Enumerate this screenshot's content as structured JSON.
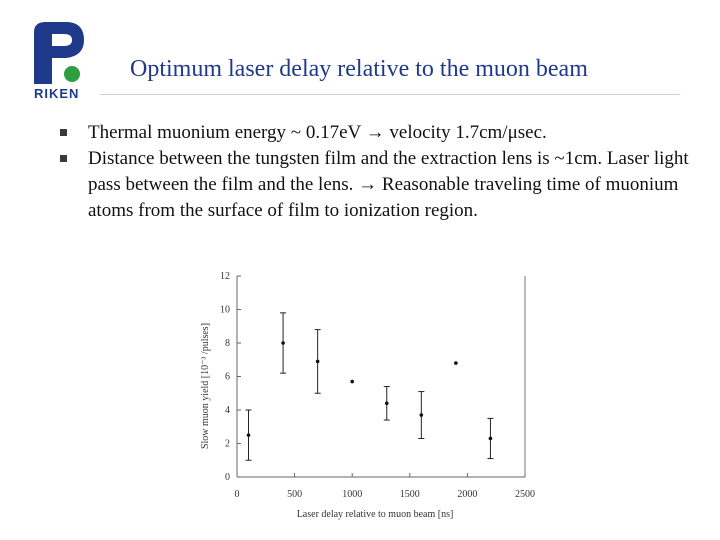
{
  "logo": {
    "text": "RIKEN",
    "color": "#1f3a8a",
    "accent": "#2e9e3e"
  },
  "slide": {
    "title": "Optimum laser delay relative to the muon beam",
    "bullets": [
      "Thermal muonium energy ~ 0.17eV → velocity 1.7cm/μsec.",
      "Distance between the tungsten film and the extraction lens is ~1cm. Laser light pass between the film and the lens. → Reasonable traveling time of muonium atoms from the surface of film to ionization region."
    ]
  },
  "chart_data": {
    "type": "scatter",
    "xlabel": "Laser delay relative to muon beam [ns]",
    "ylabel": "Slow muon yield [10⁻³ /pulses]",
    "xlim": [
      0,
      2500
    ],
    "ylim": [
      0,
      12
    ],
    "xticks": [
      0,
      500,
      1000,
      1500,
      2000,
      2500
    ],
    "yticks": [
      0,
      2,
      4,
      6,
      8,
      10,
      12
    ],
    "grid": false,
    "points": [
      {
        "x": 100,
        "y": 2.5,
        "err": 1.5
      },
      {
        "x": 400,
        "y": 8.0,
        "err": 1.8
      },
      {
        "x": 700,
        "y": 6.9,
        "err": 1.9
      },
      {
        "x": 1000,
        "y": 5.7,
        "err": 0
      },
      {
        "x": 1300,
        "y": 4.4,
        "err": 1.0
      },
      {
        "x": 1600,
        "y": 3.7,
        "err": 1.4
      },
      {
        "x": 1900,
        "y": 6.8,
        "err": 0
      },
      {
        "x": 2200,
        "y": 2.3,
        "err": 1.2
      }
    ]
  }
}
